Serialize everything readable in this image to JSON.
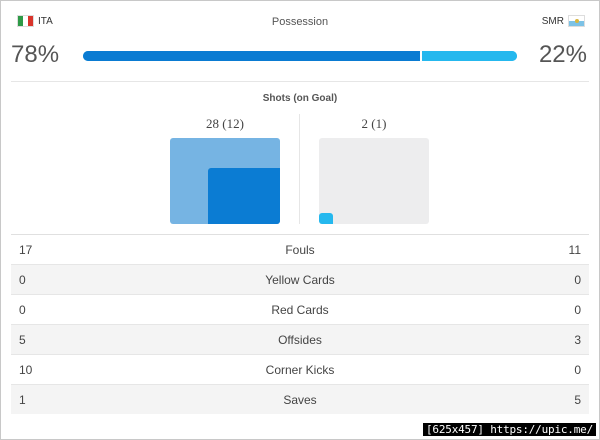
{
  "home": {
    "code": "ITA",
    "flag_icon": "italy-flag-icon",
    "possession": "78%",
    "possession_value": 78,
    "shots_label": "28 (12)",
    "shots": 28,
    "shots_on_goal": 12
  },
  "away": {
    "code": "SMR",
    "flag_icon": "san-marino-flag-icon",
    "possession": "22%",
    "possession_value": 22,
    "shots_label": "2 (1)",
    "shots": 2,
    "shots_on_goal": 1
  },
  "possession_title": "Possession",
  "shots_title": "Shots (on Goal)",
  "stats": [
    {
      "left": "17",
      "label": "Fouls",
      "right": "11"
    },
    {
      "left": "0",
      "label": "Yellow Cards",
      "right": "0"
    },
    {
      "left": "0",
      "label": "Red Cards",
      "right": "0"
    },
    {
      "left": "5",
      "label": "Offsides",
      "right": "3"
    },
    {
      "left": "10",
      "label": "Corner Kicks",
      "right": "0"
    },
    {
      "left": "1",
      "label": "Saves",
      "right": "5"
    }
  ],
  "watermark": "[625x457] https://upic.me/",
  "colors": {
    "home_dark": "#0b7cd3",
    "home_light": "#76b4e3",
    "away": "#25b8ee",
    "away_box": "#ededee"
  }
}
